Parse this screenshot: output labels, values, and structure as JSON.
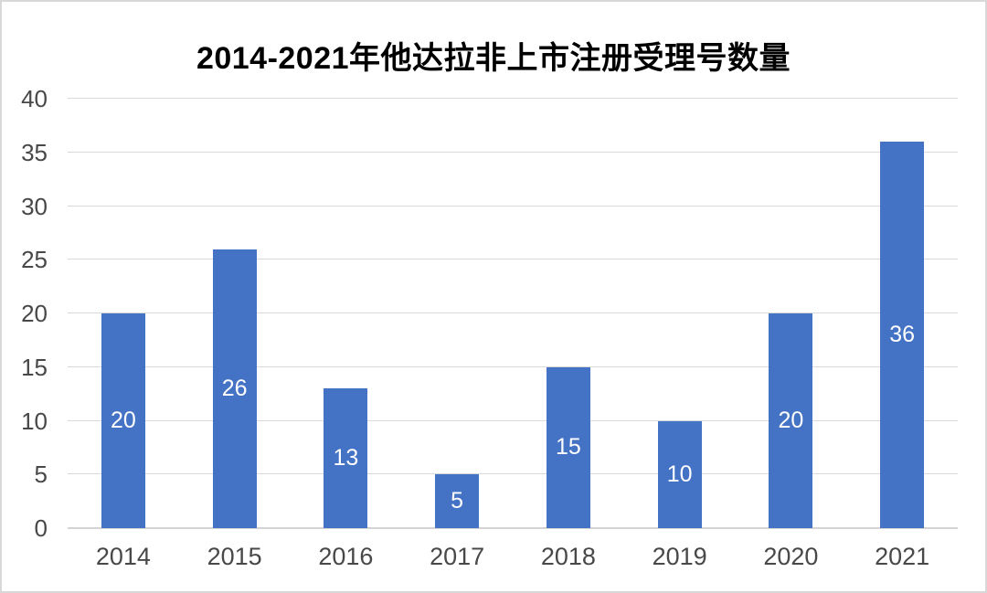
{
  "chart_data": {
    "type": "bar",
    "title": "2014-2021年他达拉非上市注册受理号数量",
    "categories": [
      "2014",
      "2015",
      "2016",
      "2017",
      "2018",
      "2019",
      "2020",
      "2021"
    ],
    "values": [
      20,
      26,
      13,
      5,
      15,
      10,
      20,
      36
    ],
    "xlabel": "",
    "ylabel": "",
    "ylim": [
      0,
      40
    ],
    "ytick_step": 5,
    "ytick_labels": [
      "0",
      "5",
      "10",
      "15",
      "20",
      "25",
      "30",
      "35",
      "40"
    ],
    "grid": "horizontal",
    "legend_position": "none",
    "data_labels_position": "inside-center",
    "colors": {
      "bar": "#4472C4",
      "data_label": "#FFFFFF",
      "axis_text": "#484848",
      "gridline": "#D9D9D9",
      "axis_line": "#D3D3D3",
      "title_text": "#000000",
      "background": "#FFFFFF",
      "frame_border": "#D8D8D8"
    }
  }
}
